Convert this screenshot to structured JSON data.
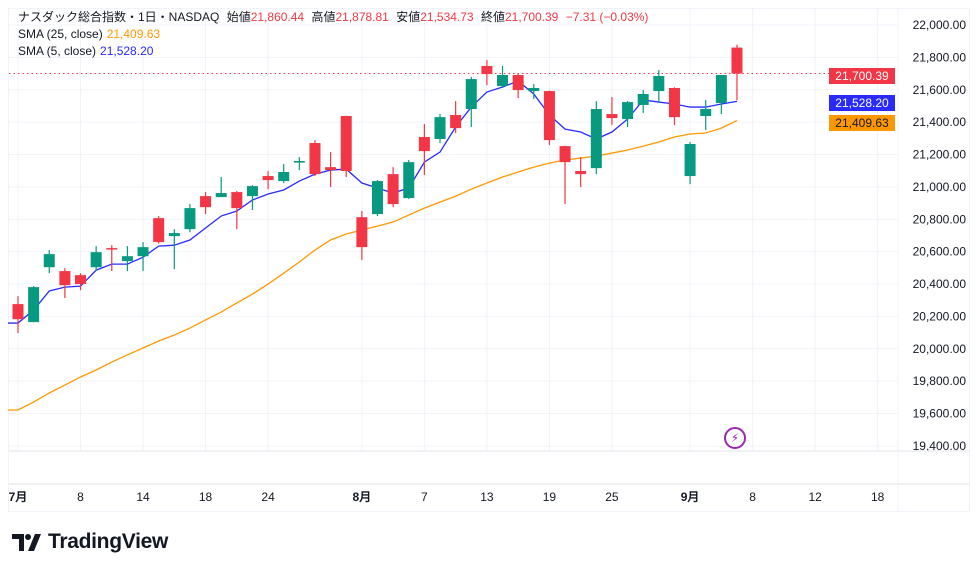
{
  "header": {
    "symbol_line": "ナスダック総合指数・1日・NASDAQ",
    "open_label": "始値",
    "open": "21,860.44",
    "high_label": "高値",
    "high": "21,878.81",
    "low_label": "安値",
    "low": "21,534.73",
    "close_label": "終値",
    "close": "21,700.39",
    "change": "−7.31 (−0.03%)"
  },
  "indicators": [
    {
      "label": "SMA (25, close)",
      "value": "21,409.63",
      "color": "#ff9800"
    },
    {
      "label": "SMA (5, close)",
      "value": "21,528.20",
      "color": "#2a2aff"
    }
  ],
  "price_badges": {
    "last": "21,700.39",
    "sma5": "21,528.20",
    "sma25": "21,409.63"
  },
  "brand": "TradingView",
  "colors": {
    "up": "#089981",
    "down": "#f23645",
    "sma25": "#ff9800",
    "sma5": "#2a2aff",
    "event": "#9c27b0"
  },
  "chart_data": {
    "type": "candlestick",
    "title": "ナスダック総合指数・1日・NASDAQ",
    "ylim": [
      19400,
      22000
    ],
    "y_ticks": [
      22000,
      21800,
      21600,
      21400,
      21200,
      21000,
      20800,
      20600,
      20400,
      20200,
      20000,
      19800,
      19600,
      19400
    ],
    "y_tick_labels": [
      "22,000.00",
      "21,800.00",
      "21,600.00",
      "21,400.00",
      "21,200.00",
      "21,000.00",
      "20,800.00",
      "20,600.00",
      "20,400.00",
      "20,200.00",
      "20,000.00",
      "19,800.00",
      "19,600.00",
      "19,400.00"
    ],
    "x_ticks": [
      {
        "label": "7月",
        "index": 0,
        "month": true
      },
      {
        "label": "8",
        "index": 4
      },
      {
        "label": "14",
        "index": 8
      },
      {
        "label": "18",
        "index": 12
      },
      {
        "label": "24",
        "index": 16
      },
      {
        "label": "8月",
        "index": 22,
        "month": true
      },
      {
        "label": "7",
        "index": 26
      },
      {
        "label": "13",
        "index": 30
      },
      {
        "label": "19",
        "index": 34
      },
      {
        "label": "25",
        "index": 38
      },
      {
        "label": "9月",
        "index": 43,
        "month": true
      },
      {
        "label": "8",
        "index": 47
      },
      {
        "label": "12",
        "index": 51
      },
      {
        "label": "18",
        "index": 55
      }
    ],
    "last_price": 21700.39,
    "ohlc": [
      [
        20276,
        20325,
        20097,
        20183
      ],
      [
        20165,
        20387,
        20165,
        20381
      ],
      [
        20504,
        20610,
        20467,
        20585
      ],
      [
        20480,
        20498,
        20313,
        20393
      ],
      [
        20455,
        20467,
        20362,
        20400
      ],
      [
        20504,
        20634,
        20480,
        20597
      ],
      [
        20622,
        20640,
        20480,
        20615
      ],
      [
        20542,
        20634,
        20480,
        20572
      ],
      [
        20572,
        20659,
        20480,
        20628
      ],
      [
        20807,
        20820,
        20650,
        20659
      ],
      [
        20696,
        20739,
        20492,
        20715
      ],
      [
        20739,
        20894,
        20720,
        20869
      ],
      [
        20943,
        20968,
        20832,
        20875
      ],
      [
        20937,
        21061,
        20937,
        20962
      ],
      [
        20968,
        20975,
        20739,
        20869
      ],
      [
        20943,
        21011,
        20857,
        21005
      ],
      [
        21067,
        21098,
        20986,
        21042
      ],
      [
        21036,
        21141,
        21024,
        21092
      ],
      [
        21150,
        21184,
        21104,
        21160
      ],
      [
        21271,
        21289,
        21067,
        21079
      ],
      [
        21122,
        21215,
        20999,
        21104
      ],
      [
        21438,
        21440,
        21061,
        21098
      ],
      [
        20813,
        20851,
        20548,
        20628
      ],
      [
        20832,
        21042,
        20820,
        21036
      ],
      [
        21079,
        21122,
        20875,
        20894
      ],
      [
        20931,
        21166,
        20925,
        21153
      ],
      [
        21308,
        21388,
        21073,
        21221
      ],
      [
        21296,
        21450,
        21271,
        21431
      ],
      [
        21444,
        21530,
        21333,
        21363
      ],
      [
        21481,
        21679,
        21370,
        21666
      ],
      [
        21747,
        21784,
        21629,
        21697
      ],
      [
        21623,
        21747,
        21611,
        21691
      ],
      [
        21691,
        21697,
        21549,
        21598
      ],
      [
        21592,
        21635,
        21543,
        21611
      ],
      [
        21592,
        21595,
        21258,
        21289
      ],
      [
        21252,
        21255,
        20894,
        21153
      ],
      [
        21098,
        21184,
        20999,
        21079
      ],
      [
        21116,
        21530,
        21079,
        21481
      ],
      [
        21450,
        21555,
        21382,
        21425
      ],
      [
        21419,
        21530,
        21370,
        21524
      ],
      [
        21506,
        21598,
        21456,
        21574
      ],
      [
        21592,
        21722,
        21518,
        21685
      ],
      [
        21611,
        21615,
        21382,
        21431
      ],
      [
        21067,
        21277,
        21017,
        21265
      ],
      [
        21438,
        21537,
        21351,
        21481
      ],
      [
        21518,
        21691,
        21450,
        21691
      ],
      [
        21860.44,
        21878.81,
        21534.73,
        21700.39
      ]
    ],
    "sma5": [
      20159,
      20239,
      20357,
      20381,
      20387,
      20486,
      20523,
      20523,
      20566,
      20634,
      20640,
      20672,
      20746,
      20820,
      20851,
      20919,
      20956,
      20981,
      21036,
      21079,
      21104,
      21110,
      21024,
      20993,
      20962,
      20993,
      21153,
      21215,
      21370,
      21493,
      21586,
      21617,
      21654,
      21574,
      21444,
      21357,
      21339,
      21296,
      21339,
      21419,
      21537,
      21524,
      21512,
      21493,
      21493,
      21512,
      21528.2
    ],
    "sma25": [
      19622,
      19671,
      19727,
      19776,
      19826,
      19869,
      19918,
      19962,
      20005,
      20048,
      20085,
      20128,
      20178,
      20227,
      20283,
      20338,
      20400,
      20467,
      20536,
      20610,
      20672,
      20709,
      20734,
      20758,
      20783,
      20826,
      20869,
      20906,
      20943,
      20986,
      21024,
      21061,
      21092,
      21122,
      21147,
      21166,
      21178,
      21190,
      21209,
      21228,
      21252,
      21277,
      21308,
      21327,
      21333,
      21363,
      21409.63
    ]
  }
}
